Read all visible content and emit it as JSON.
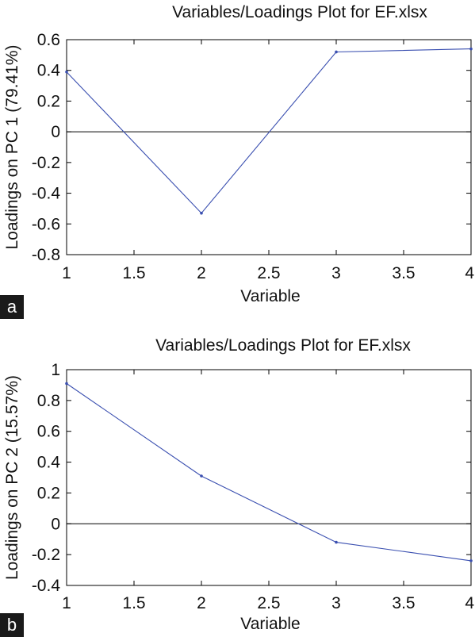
{
  "colors": {
    "series": "#3a4fb0",
    "axis": "#000000",
    "zero_line": "#000000",
    "tag_bg": "#1a1a1a"
  },
  "chart_data": [
    {
      "type": "line",
      "panel_label": "a",
      "title": "Variables/Loadings Plot for EF.xlsx",
      "xlabel": "Variable",
      "ylabel": "Loadings on PC 1 (79.41%)",
      "xlim": [
        1,
        4
      ],
      "ylim": [
        -0.8,
        0.6
      ],
      "xticks": [
        "1",
        "1.5",
        "2",
        "2.5",
        "3",
        "3.5",
        "4"
      ],
      "yticks": [
        "0.6",
        "0.4",
        "0.2",
        "0",
        "-0.2",
        "-0.4",
        "-0.6",
        "-0.8"
      ],
      "grid": false,
      "zero_line": true,
      "x": [
        1,
        2,
        3,
        4
      ],
      "values": [
        0.39,
        -0.53,
        0.52,
        0.54
      ]
    },
    {
      "type": "line",
      "panel_label": "b",
      "title": "Variables/Loadings Plot for EF.xlsx",
      "xlabel": "Variable",
      "ylabel": "Loadings on PC 2 (15.57%)",
      "xlim": [
        1,
        4
      ],
      "ylim": [
        -0.4,
        1
      ],
      "xticks": [
        "1",
        "1.5",
        "2",
        "2.5",
        "3",
        "3.5",
        "4"
      ],
      "yticks": [
        "1",
        "0.8",
        "0.6",
        "0.4",
        "0.2",
        "0",
        "-0.2",
        "-0.4"
      ],
      "grid": false,
      "zero_line": true,
      "x": [
        1,
        2,
        3,
        4
      ],
      "values": [
        0.91,
        0.31,
        -0.12,
        -0.24
      ]
    }
  ]
}
